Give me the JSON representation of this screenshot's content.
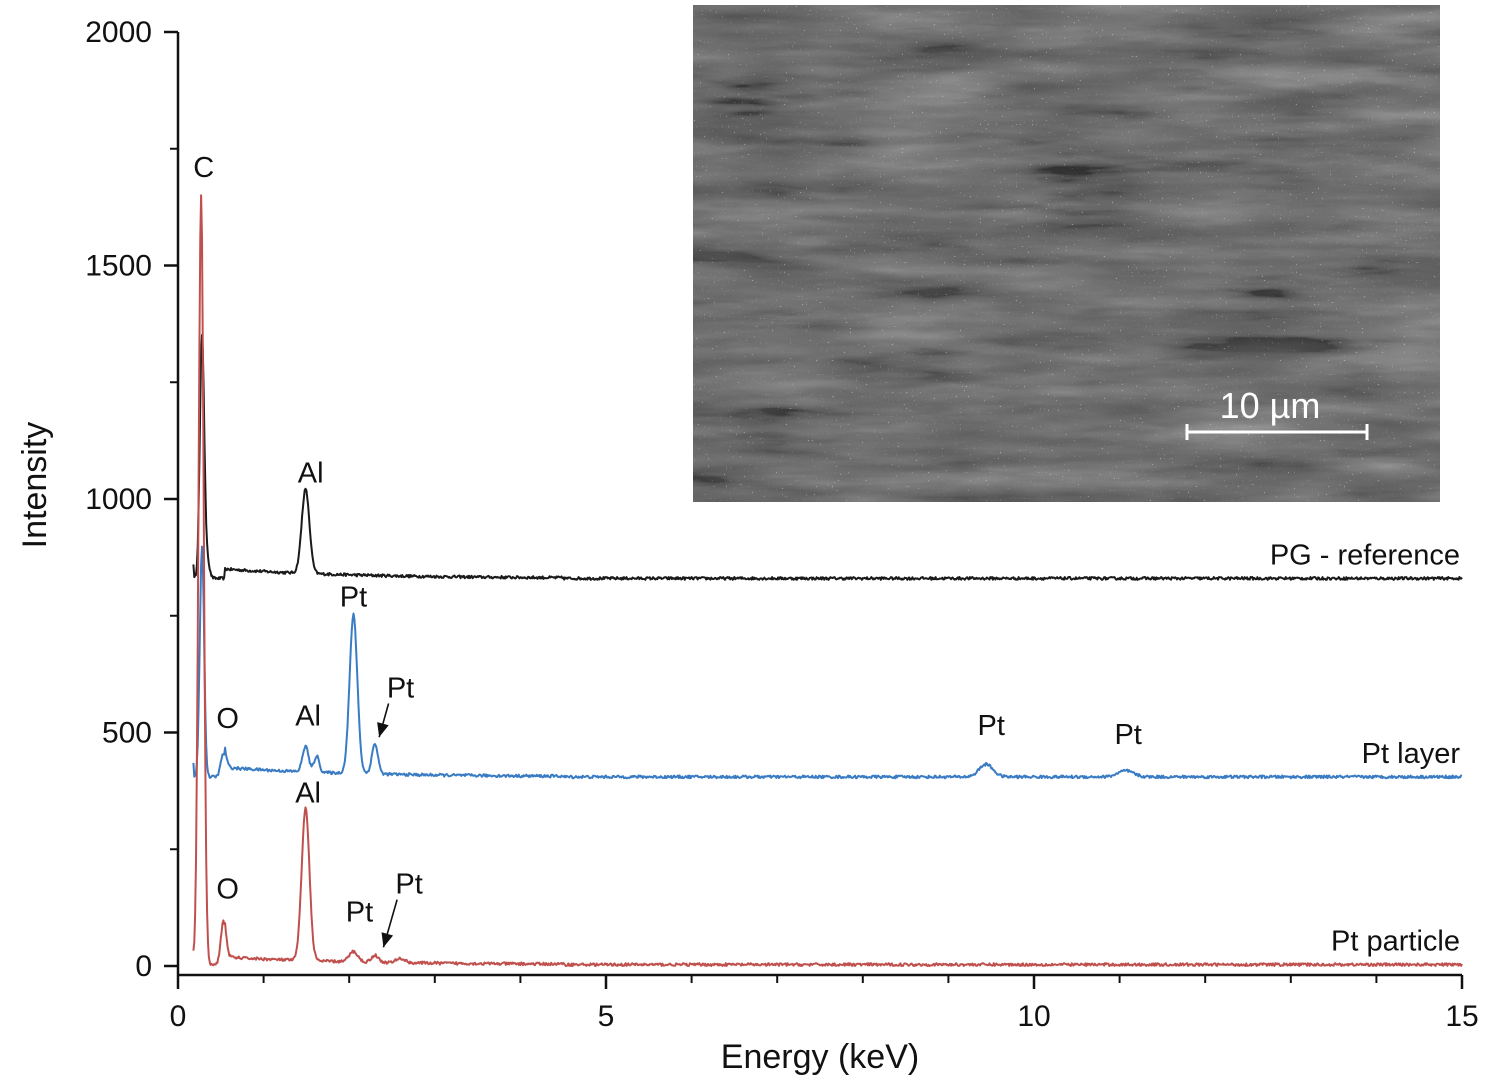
{
  "chart_data": {
    "type": "line",
    "title": "",
    "xlabel": "Energy (keV)",
    "ylabel": "Intensity",
    "xlim": [
      0,
      15
    ],
    "ylim": [
      0,
      2000
    ],
    "x_ticks": [
      0,
      5,
      10,
      15
    ],
    "x_tick_labels": [
      "0",
      "5",
      "10",
      "15"
    ],
    "y_ticks": [
      0,
      500,
      1000,
      1500,
      2000
    ],
    "y_tick_labels": [
      "0",
      "500",
      "1000",
      "1500",
      "2000"
    ],
    "grid": false,
    "legend": "none (series labelled directly on plot)",
    "series": [
      {
        "name": "PG - reference",
        "color": "#1a1a1a",
        "baseline": 830,
        "peaks": [
          {
            "x": 0.28,
            "y": 1340,
            "w": 0.025
          },
          {
            "x": 0.33,
            "y": 880,
            "w": 0.03
          },
          {
            "x": 1.49,
            "y": 1010,
            "w": 0.045
          }
        ]
      },
      {
        "name": "Pt layer",
        "color": "#3a7cc4",
        "baseline": 405,
        "peaks": [
          {
            "x": 0.28,
            "y": 900,
            "w": 0.025
          },
          {
            "x": 0.53,
            "y": 455,
            "w": 0.03
          },
          {
            "x": 1.49,
            "y": 460,
            "w": 0.035
          },
          {
            "x": 1.62,
            "y": 440,
            "w": 0.03
          },
          {
            "x": 2.05,
            "y": 745,
            "w": 0.045
          },
          {
            "x": 2.3,
            "y": 470,
            "w": 0.035
          },
          {
            "x": 9.44,
            "y": 432,
            "w": 0.08
          },
          {
            "x": 11.07,
            "y": 418,
            "w": 0.09
          }
        ]
      },
      {
        "name": "Pt particle",
        "color": "#c0504d",
        "baseline": 3,
        "peaks": [
          {
            "x": 0.27,
            "y": 1650,
            "w": 0.03
          },
          {
            "x": 0.53,
            "y": 95,
            "w": 0.03
          },
          {
            "x": 1.49,
            "y": 330,
            "w": 0.045
          },
          {
            "x": 2.05,
            "y": 25,
            "w": 0.05
          },
          {
            "x": 2.3,
            "y": 18,
            "w": 0.04
          },
          {
            "x": 2.6,
            "y": 12,
            "w": 0.05
          }
        ]
      }
    ],
    "series_labels": [
      {
        "text": "PG - reference",
        "x": 15,
        "y": 830
      },
      {
        "text": "Pt layer",
        "x": 15,
        "y": 405
      },
      {
        "text": "Pt particle",
        "x": 15,
        "y": 3
      }
    ],
    "annotations": [
      {
        "text": "C",
        "x": 0.3,
        "y": 1690
      },
      {
        "text": "Al",
        "x": 1.55,
        "y": 1035
      },
      {
        "text": "Pt",
        "x": 2.05,
        "y": 770
      },
      {
        "text": "Pt",
        "x": 2.6,
        "y": 575,
        "arrow_to": {
          "x": 2.35,
          "y": 490
        }
      },
      {
        "text": "O",
        "x": 0.58,
        "y": 510
      },
      {
        "text": "Al",
        "x": 1.52,
        "y": 515
      },
      {
        "text": "Pt",
        "x": 9.5,
        "y": 495
      },
      {
        "text": "Pt",
        "x": 11.1,
        "y": 475
      },
      {
        "text": "Al",
        "x": 1.52,
        "y": 350
      },
      {
        "text": "O",
        "x": 0.58,
        "y": 145
      },
      {
        "text": "Pt",
        "x": 2.12,
        "y": 95
      },
      {
        "text": "Pt",
        "x": 2.7,
        "y": 155,
        "arrow_to": {
          "x": 2.4,
          "y": 40
        }
      }
    ],
    "inset": {
      "type": "micrograph",
      "scalebar_label": "10 µm"
    }
  }
}
